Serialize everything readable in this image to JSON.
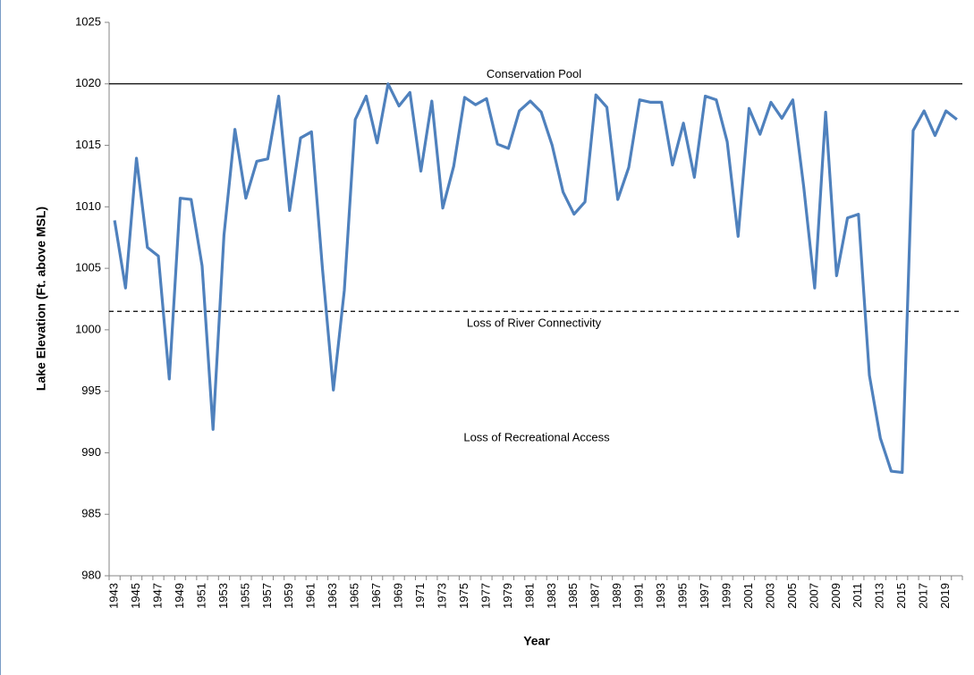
{
  "chart_data": {
    "type": "line",
    "x_label": "Year",
    "y_label": "Lake Elevation (Ft. above MSL)",
    "categories": [
      "1943",
      null,
      "1945",
      null,
      "1947",
      null,
      "1949",
      null,
      "1951",
      null,
      "1953",
      null,
      "1955",
      null,
      "1957",
      null,
      "1959",
      null,
      "1961",
      null,
      "1963",
      null,
      "1965",
      null,
      "1967",
      null,
      "1969",
      null,
      "1971",
      null,
      "1973",
      null,
      "1975",
      null,
      "1977",
      null,
      "1979",
      null,
      "1981",
      null,
      "1983",
      null,
      "1985",
      null,
      "1987",
      null,
      "1989",
      null,
      "1991",
      null,
      "1993",
      null,
      "1995",
      null,
      "1997",
      null,
      "1999",
      null,
      "2001",
      null,
      "2003",
      null,
      "2005",
      null,
      "2007",
      null,
      "2009",
      null,
      "2011",
      null,
      "2013",
      null,
      "2015",
      null,
      "2017",
      null,
      "2019",
      null
    ],
    "series": [
      {
        "color": "#4f81bd",
        "values": [
          1008.9,
          1003.4,
          1013.95,
          1006.7,
          1006.0,
          996.0,
          1010.7,
          1010.6,
          1005.2,
          991.9,
          1007.7,
          1016.3,
          1010.7,
          1013.7,
          1013.9,
          1019.0,
          1009.7,
          1015.6,
          1016.1,
          1005.0,
          995.1,
          1003.2,
          1017.1,
          1019.0,
          1015.2,
          1020.0,
          1018.2,
          1019.3,
          1012.9,
          1018.6,
          1009.9,
          1013.3,
          1018.9,
          1018.3,
          1018.8,
          1015.1,
          1014.75,
          1017.8,
          1018.6,
          1017.7,
          1015.0,
          1011.2,
          1009.4,
          1010.4,
          1019.1,
          1018.1,
          1010.6,
          1013.2,
          1018.7,
          1018.5,
          1018.5,
          1013.4,
          1016.8,
          1012.4,
          1019.0,
          1018.7,
          1015.3,
          1007.6,
          1018.0,
          1015.9,
          1018.5,
          1017.2,
          1018.7,
          1011.6,
          1003.4,
          1017.7,
          1004.4,
          1009.1,
          1009.4,
          996.3,
          991.2,
          988.5,
          988.4,
          1016.2,
          1017.8,
          1015.8,
          1017.8,
          1017.1
        ]
      }
    ],
    "ylim": [
      980,
      1025
    ],
    "yticks": [
      980,
      985,
      990,
      995,
      1000,
      1005,
      1010,
      1015,
      1020,
      1025
    ],
    "reference_lines": [
      {
        "label": "Conservation Pool",
        "value": 1020,
        "style": "solid"
      },
      {
        "label": "Loss of River Connectivity",
        "value": 1001.5,
        "style": "dashed"
      }
    ],
    "annotations": [
      "Loss of Recreational Access"
    ],
    "grid": false
  }
}
